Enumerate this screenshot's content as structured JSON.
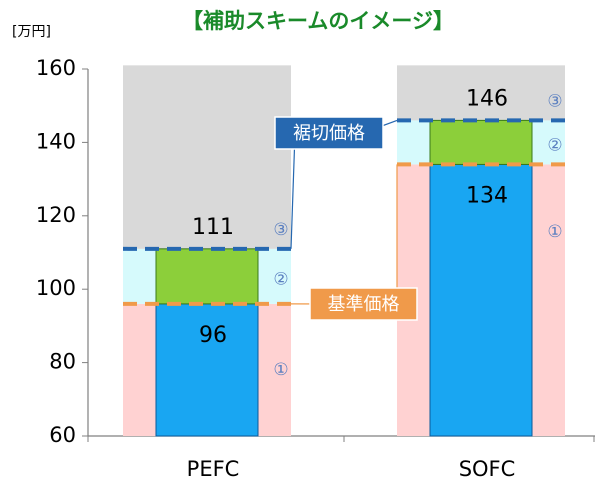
{
  "chart_data": {
    "type": "bar",
    "title": "【補助スキームのイメージ】",
    "y_unit": "[万円]",
    "categories": [
      "PEFC",
      "SOFC"
    ],
    "ylim": [
      60,
      160
    ],
    "yticks": [
      60,
      80,
      100,
      120,
      140,
      160
    ],
    "reference_price": {
      "name": "基準価格",
      "values": [
        96,
        134
      ],
      "color": "#f09a4a",
      "bar_color": "#19a6f2",
      "zone_color": "#ffd2d2",
      "zone_label": "①"
    },
    "cutoff_price": {
      "name": "裾切価格",
      "values": [
        111,
        146
      ],
      "color": "#2668b0",
      "bar_color": "#8ccf3a",
      "zone_color": "#d6fafc",
      "zone_label": "②"
    },
    "ceiling": {
      "values": [
        161,
        161
      ],
      "zone_color": "#d9d9d9",
      "zone_label": "③"
    }
  }
}
